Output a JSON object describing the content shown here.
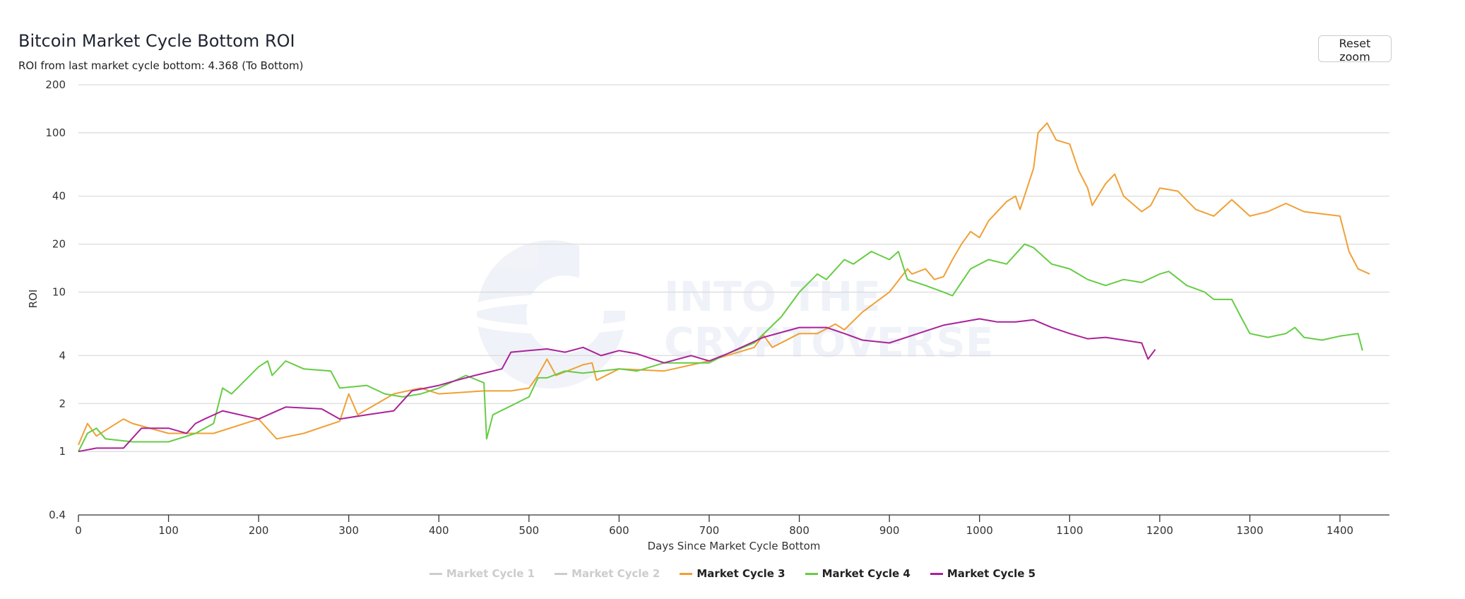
{
  "header": {
    "title": "Bitcoin Market Cycle Bottom ROI",
    "subtitle": "ROI from last market cycle bottom: 4.368 (To Bottom)",
    "reset_zoom": "Reset zoom"
  },
  "watermark": {
    "line1": "INTO THE",
    "line2": "CRYPTOVERSE"
  },
  "chart_data": {
    "type": "line",
    "title": "Bitcoin Market Cycle Bottom ROI",
    "subtitle": "ROI from last market cycle bottom: 4.368 (To Bottom)",
    "xlabel": "Days Since Market Cycle Bottom",
    "ylabel": "ROI",
    "yscale": "log",
    "xlim": [
      0,
      1455
    ],
    "ylim": [
      0.4,
      200
    ],
    "xticks": [
      0,
      100,
      200,
      300,
      400,
      500,
      600,
      700,
      800,
      900,
      1000,
      1100,
      1200,
      1300,
      1400
    ],
    "yticks": [
      0.4,
      1,
      2,
      4,
      10,
      20,
      40,
      100,
      200
    ],
    "grid": true,
    "legend_position": "bottom",
    "series": [
      {
        "name": "Market Cycle 1",
        "color": "#cccccc",
        "visible": false,
        "points": []
      },
      {
        "name": "Market Cycle 2",
        "color": "#cccccc",
        "visible": false,
        "points": []
      },
      {
        "name": "Market Cycle 3",
        "color": "#f0a035",
        "visible": true,
        "points": [
          [
            0,
            1.1
          ],
          [
            10,
            1.5
          ],
          [
            20,
            1.25
          ],
          [
            50,
            1.6
          ],
          [
            60,
            1.5
          ],
          [
            100,
            1.3
          ],
          [
            150,
            1.3
          ],
          [
            200,
            1.6
          ],
          [
            220,
            1.2
          ],
          [
            250,
            1.3
          ],
          [
            290,
            1.55
          ],
          [
            300,
            2.3
          ],
          [
            310,
            1.7
          ],
          [
            350,
            2.3
          ],
          [
            380,
            2.5
          ],
          [
            400,
            2.3
          ],
          [
            450,
            2.4
          ],
          [
            480,
            2.4
          ],
          [
            500,
            2.5
          ],
          [
            510,
            3.0
          ],
          [
            520,
            3.8
          ],
          [
            530,
            3.0
          ],
          [
            560,
            3.5
          ],
          [
            570,
            3.6
          ],
          [
            575,
            2.8
          ],
          [
            600,
            3.3
          ],
          [
            650,
            3.2
          ],
          [
            700,
            3.7
          ],
          [
            750,
            4.5
          ],
          [
            760,
            5.4
          ],
          [
            770,
            4.5
          ],
          [
            800,
            5.5
          ],
          [
            820,
            5.5
          ],
          [
            840,
            6.3
          ],
          [
            850,
            5.8
          ],
          [
            870,
            7.5
          ],
          [
            900,
            10
          ],
          [
            920,
            14
          ],
          [
            925,
            13
          ],
          [
            940,
            14
          ],
          [
            950,
            12
          ],
          [
            960,
            12.5
          ],
          [
            970,
            16
          ],
          [
            980,
            20
          ],
          [
            990,
            24
          ],
          [
            1000,
            22
          ],
          [
            1010,
            28
          ],
          [
            1030,
            37
          ],
          [
            1040,
            40
          ],
          [
            1045,
            33
          ],
          [
            1060,
            60
          ],
          [
            1065,
            100
          ],
          [
            1075,
            115
          ],
          [
            1085,
            90
          ],
          [
            1100,
            85
          ],
          [
            1110,
            58
          ],
          [
            1120,
            45
          ],
          [
            1125,
            35
          ],
          [
            1140,
            48
          ],
          [
            1150,
            55
          ],
          [
            1160,
            40
          ],
          [
            1180,
            32
          ],
          [
            1190,
            35
          ],
          [
            1200,
            45
          ],
          [
            1220,
            43
          ],
          [
            1240,
            33
          ],
          [
            1260,
            30
          ],
          [
            1280,
            38
          ],
          [
            1300,
            30
          ],
          [
            1320,
            32
          ],
          [
            1340,
            36
          ],
          [
            1360,
            32
          ],
          [
            1380,
            31
          ],
          [
            1400,
            30
          ],
          [
            1410,
            18
          ],
          [
            1420,
            14
          ],
          [
            1433,
            13
          ]
        ]
      },
      {
        "name": "Market Cycle 4",
        "color": "#66cc44",
        "visible": true,
        "points": [
          [
            0,
            1.0
          ],
          [
            10,
            1.3
          ],
          [
            20,
            1.4
          ],
          [
            30,
            1.2
          ],
          [
            60,
            1.15
          ],
          [
            100,
            1.15
          ],
          [
            130,
            1.3
          ],
          [
            150,
            1.5
          ],
          [
            160,
            2.5
          ],
          [
            170,
            2.3
          ],
          [
            200,
            3.4
          ],
          [
            210,
            3.7
          ],
          [
            215,
            3.0
          ],
          [
            230,
            3.7
          ],
          [
            250,
            3.3
          ],
          [
            280,
            3.2
          ],
          [
            290,
            2.5
          ],
          [
            320,
            2.6
          ],
          [
            340,
            2.3
          ],
          [
            360,
            2.2
          ],
          [
            380,
            2.3
          ],
          [
            400,
            2.5
          ],
          [
            430,
            3.0
          ],
          [
            450,
            2.7
          ],
          [
            453,
            1.2
          ],
          [
            460,
            1.7
          ],
          [
            500,
            2.2
          ],
          [
            510,
            2.9
          ],
          [
            520,
            2.9
          ],
          [
            540,
            3.2
          ],
          [
            560,
            3.1
          ],
          [
            600,
            3.3
          ],
          [
            620,
            3.2
          ],
          [
            650,
            3.6
          ],
          [
            700,
            3.6
          ],
          [
            720,
            4.1
          ],
          [
            750,
            4.8
          ],
          [
            780,
            7
          ],
          [
            800,
            10
          ],
          [
            820,
            13
          ],
          [
            830,
            12
          ],
          [
            850,
            16
          ],
          [
            860,
            15
          ],
          [
            880,
            18
          ],
          [
            900,
            16
          ],
          [
            910,
            18
          ],
          [
            920,
            12
          ],
          [
            940,
            11
          ],
          [
            960,
            10
          ],
          [
            970,
            9.5
          ],
          [
            990,
            14
          ],
          [
            1010,
            16
          ],
          [
            1030,
            15
          ],
          [
            1050,
            20
          ],
          [
            1060,
            19
          ],
          [
            1080,
            15
          ],
          [
            1100,
            14
          ],
          [
            1120,
            12
          ],
          [
            1140,
            11
          ],
          [
            1160,
            12
          ],
          [
            1180,
            11.5
          ],
          [
            1200,
            13
          ],
          [
            1210,
            13.5
          ],
          [
            1230,
            11
          ],
          [
            1250,
            10
          ],
          [
            1260,
            9
          ],
          [
            1280,
            9
          ],
          [
            1290,
            7
          ],
          [
            1300,
            5.5
          ],
          [
            1320,
            5.2
          ],
          [
            1340,
            5.5
          ],
          [
            1350,
            6
          ],
          [
            1360,
            5.2
          ],
          [
            1380,
            5.0
          ],
          [
            1400,
            5.3
          ],
          [
            1420,
            5.5
          ],
          [
            1425,
            4.3
          ]
        ]
      },
      {
        "name": "Market Cycle 5",
        "color": "#aa2299",
        "visible": true,
        "points": [
          [
            0,
            1.0
          ],
          [
            20,
            1.05
          ],
          [
            50,
            1.05
          ],
          [
            70,
            1.4
          ],
          [
            100,
            1.4
          ],
          [
            120,
            1.3
          ],
          [
            130,
            1.5
          ],
          [
            140,
            1.6
          ],
          [
            160,
            1.8
          ],
          [
            200,
            1.6
          ],
          [
            230,
            1.9
          ],
          [
            270,
            1.85
          ],
          [
            290,
            1.6
          ],
          [
            320,
            1.7
          ],
          [
            350,
            1.8
          ],
          [
            370,
            2.4
          ],
          [
            400,
            2.6
          ],
          [
            420,
            2.8
          ],
          [
            440,
            3.0
          ],
          [
            470,
            3.3
          ],
          [
            480,
            4.2
          ],
          [
            500,
            4.3
          ],
          [
            520,
            4.4
          ],
          [
            540,
            4.2
          ],
          [
            560,
            4.5
          ],
          [
            580,
            4.0
          ],
          [
            600,
            4.3
          ],
          [
            620,
            4.1
          ],
          [
            650,
            3.6
          ],
          [
            680,
            4.0
          ],
          [
            700,
            3.7
          ],
          [
            720,
            4.1
          ],
          [
            760,
            5.2
          ],
          [
            800,
            6.0
          ],
          [
            830,
            6.0
          ],
          [
            850,
            5.5
          ],
          [
            870,
            5.0
          ],
          [
            900,
            4.8
          ],
          [
            940,
            5.7
          ],
          [
            960,
            6.2
          ],
          [
            1000,
            6.8
          ],
          [
            1020,
            6.5
          ],
          [
            1040,
            6.5
          ],
          [
            1060,
            6.7
          ],
          [
            1080,
            6.0
          ],
          [
            1100,
            5.5
          ],
          [
            1120,
            5.1
          ],
          [
            1140,
            5.2
          ],
          [
            1160,
            5.0
          ],
          [
            1180,
            4.8
          ],
          [
            1187,
            3.8
          ],
          [
            1195,
            4.368
          ]
        ]
      }
    ]
  }
}
